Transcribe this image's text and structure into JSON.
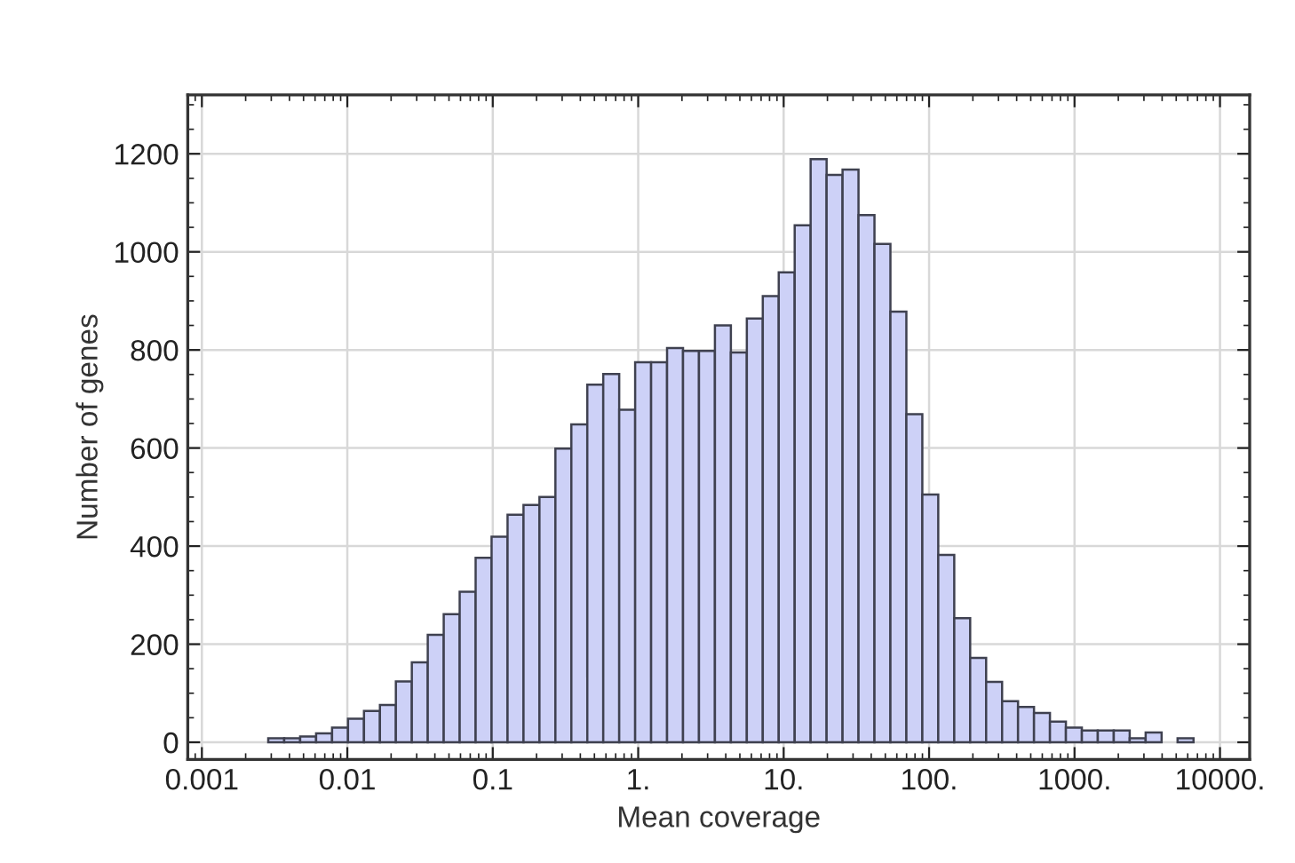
{
  "chart_data": {
    "type": "histogram",
    "xlabel": "Mean coverage",
    "ylabel": "Number of genes",
    "log": "x",
    "color": "#cdd1f7",
    "bins": [
      0.001042,
      0.001341,
      0.001726,
      0.002222,
      0.00286,
      0.003682,
      0.00474,
      0.006102,
      0.007855,
      0.01011,
      0.01302,
      0.01676,
      0.02157,
      0.02777,
      0.03574,
      0.04601,
      0.05923,
      0.07625,
      0.09816,
      0.1264,
      0.1627,
      0.2094,
      0.2696,
      0.347,
      0.4467,
      0.575,
      0.7402,
      0.9529,
      1.2266,
      1.579,
      2.033,
      2.617,
      3.369,
      4.337,
      5.583,
      7.187,
      9.252,
      11.91,
      15.33,
      19.74,
      25.41,
      32.71,
      42.11,
      54.21,
      69.78,
      89.83,
      115.6,
      148.9,
      191.6,
      246.7,
      317.6,
      408.8,
      526.3,
      677.5,
      872.1,
      1123,
      1445,
      1861,
      2395,
      3083,
      3969,
      5110,
      6578,
      8467,
      10900
    ],
    "values": [
      0,
      0,
      0,
      0,
      8,
      8,
      12,
      18,
      30,
      48,
      64,
      76,
      124,
      163,
      219,
      261,
      307,
      376,
      419,
      464,
      484,
      500,
      599,
      648,
      729,
      751,
      678,
      775,
      775,
      804,
      798,
      798,
      850,
      795,
      864,
      910,
      958,
      1054,
      1189,
      1157,
      1168,
      1075,
      1016,
      878,
      669,
      505,
      382,
      253,
      172,
      123,
      84,
      72,
      60,
      42,
      30,
      24,
      24,
      24,
      8,
      20,
      0,
      8,
      0,
      0
    ],
    "xlim": [
      0.0008,
      16000
    ],
    "xticks": [
      0.001,
      0.01,
      0.1,
      {
        "value": 1,
        "label": "1."
      },
      {
        "value": 10,
        "label": "10."
      },
      {
        "value": 100,
        "label": "100."
      },
      {
        "value": 1000,
        "label": "1000."
      },
      {
        "value": 10000,
        "label": "10000."
      }
    ],
    "ylim": [
      -35,
      1320
    ],
    "yticks": [
      0,
      200,
      400,
      600,
      800,
      1000,
      1200
    ],
    "grid": true
  }
}
